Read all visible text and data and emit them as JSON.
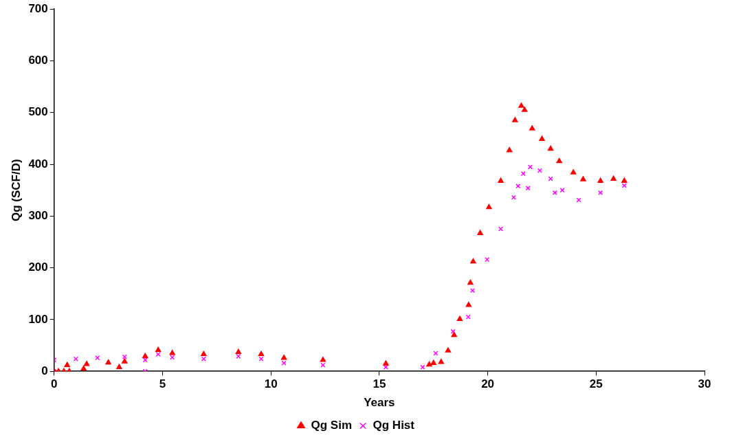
{
  "chart_data": {
    "type": "scatter",
    "xlabel": "Years",
    "ylabel": "Qg (SCF/D)",
    "xlim": [
      0,
      30
    ],
    "xticks": [
      0,
      5,
      10,
      15,
      20,
      25,
      30
    ],
    "ylim": [
      0,
      700
    ],
    "yticks": [
      0,
      100,
      200,
      300,
      400,
      500,
      600,
      700
    ],
    "grid": false,
    "legend": "bottom",
    "series": [
      {
        "name": "Qg Sim",
        "color": "#ff0000",
        "marker": "triangle",
        "x": [
          0,
          0.2,
          0.45,
          0.7,
          1.36,
          3.0,
          0.6,
          1.5,
          2.5,
          3.25,
          4.2,
          4.8,
          5.45,
          6.9,
          8.5,
          9.55,
          10.6,
          12.4,
          15.3,
          17.3,
          17.5,
          17.85,
          18.17,
          18.45,
          18.71,
          19.12,
          19.2,
          19.33,
          19.65,
          20.06,
          20.6,
          21.0,
          21.26,
          21.55,
          21.7,
          22.05,
          22.5,
          22.9,
          23.3,
          23.95,
          24.4,
          25.2,
          25.8,
          26.3
        ],
        "values": [
          0,
          0,
          0,
          0,
          5,
          8,
          12,
          14,
          17,
          19,
          29,
          41,
          35,
          33,
          37,
          33,
          26,
          22,
          15,
          13,
          16,
          18,
          40,
          70,
          101,
          128,
          171,
          212,
          267,
          317,
          368,
          427,
          485,
          513,
          505,
          469,
          449,
          430,
          406,
          384,
          371,
          368,
          372,
          368
        ]
      },
      {
        "name": "Qg Hist",
        "color": "#ff00ff",
        "marker": "cross",
        "x": [
          0,
          0,
          1.0,
          2.0,
          3.25,
          4.2,
          4.2,
          4.8,
          5.45,
          6.9,
          8.5,
          9.55,
          10.6,
          12.4,
          15.3,
          17.0,
          17.6,
          18.4,
          19.1,
          19.3,
          19.97,
          20.6,
          21.2,
          21.4,
          21.64,
          21.86,
          21.96,
          22.4,
          22.9,
          23.1,
          23.44,
          24.2,
          25.2,
          26.3
        ],
        "values": [
          0,
          22,
          24,
          26,
          28,
          0,
          22,
          33,
          27,
          24,
          29,
          24,
          16,
          12,
          8,
          8,
          35,
          77,
          105,
          156,
          216,
          275,
          336,
          358,
          382,
          354,
          395,
          388,
          372,
          345,
          350,
          331,
          345,
          359
        ]
      }
    ]
  }
}
